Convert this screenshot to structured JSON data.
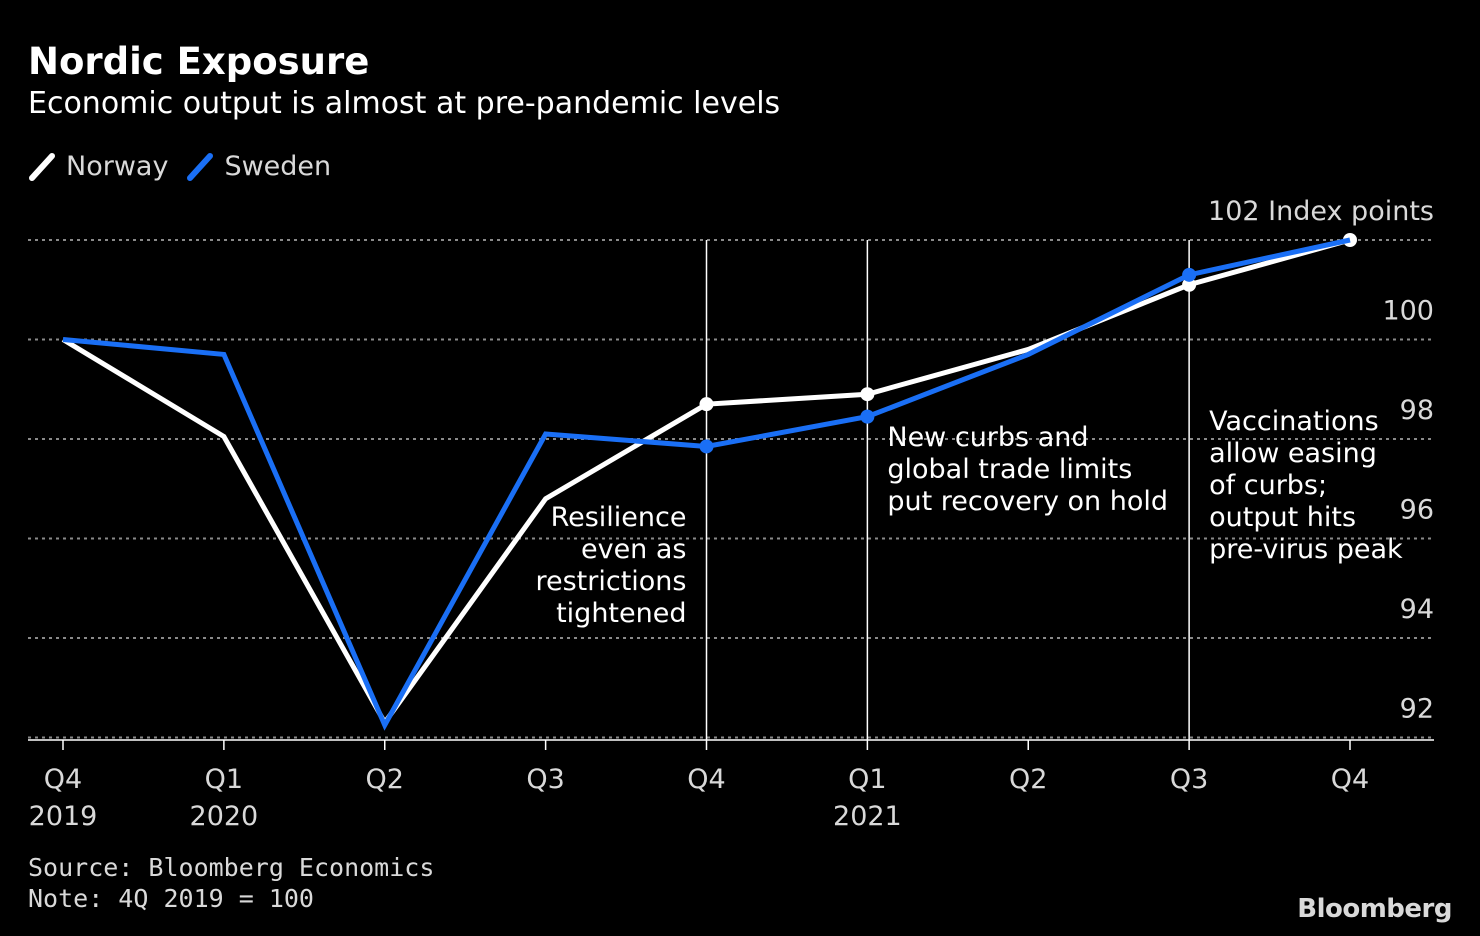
{
  "title": "Nordic Exposure",
  "subtitle": "Economic output is almost at pre-pandemic levels",
  "source": "Source: Bloomberg Economics",
  "note": "Note: 4Q 2019 = 100",
  "brand": "Bloomberg",
  "colors": {
    "background": "#000000",
    "norway": "#ffffff",
    "sweden": "#1a6ff5",
    "grid": "#8a8a8a",
    "text": "#d9d9d9"
  },
  "chart_data": {
    "type": "line",
    "x": [
      "Q4 2019",
      "Q1 2020",
      "Q2 2020",
      "Q3 2020",
      "Q4 2020",
      "Q1 2021",
      "Q2 2021",
      "Q3 2021",
      "Q4 2021"
    ],
    "x_tick_labels": [
      "Q4",
      "Q1",
      "Q2",
      "Q3",
      "Q4",
      "Q1",
      "Q2",
      "Q3",
      "Q4"
    ],
    "x_year_labels": [
      "2019",
      "2020",
      "",
      "",
      "",
      "2021",
      "",
      "",
      ""
    ],
    "y_unit_label": "Index points",
    "y_ticks": [
      92,
      94,
      96,
      98,
      100,
      102
    ],
    "ylim": [
      91.95,
      102
    ],
    "grid": true,
    "legend_position": "top-left",
    "series": [
      {
        "name": "Norway",
        "values": [
          100,
          98.05,
          92.3,
          96.8,
          98.7,
          98.9,
          99.8,
          101.1,
          102.0
        ],
        "markers": [
          4,
          5,
          7,
          8
        ]
      },
      {
        "name": "Sweden",
        "values": [
          100,
          99.7,
          92.25,
          98.1,
          97.85,
          98.45,
          99.7,
          101.3,
          102.0
        ],
        "markers": [
          4,
          5,
          7
        ]
      }
    ],
    "annotations": [
      {
        "at": 4,
        "lines": [
          "Resilience",
          "even as",
          "restrictions",
          "tightened"
        ]
      },
      {
        "at": 5,
        "lines": [
          "New curbs and",
          "global trade limits",
          "put recovery on hold"
        ]
      },
      {
        "at": 7,
        "lines": [
          "Vaccinations",
          "allow easing",
          "of curbs;",
          "output hits",
          "pre-virus peak"
        ]
      }
    ]
  }
}
